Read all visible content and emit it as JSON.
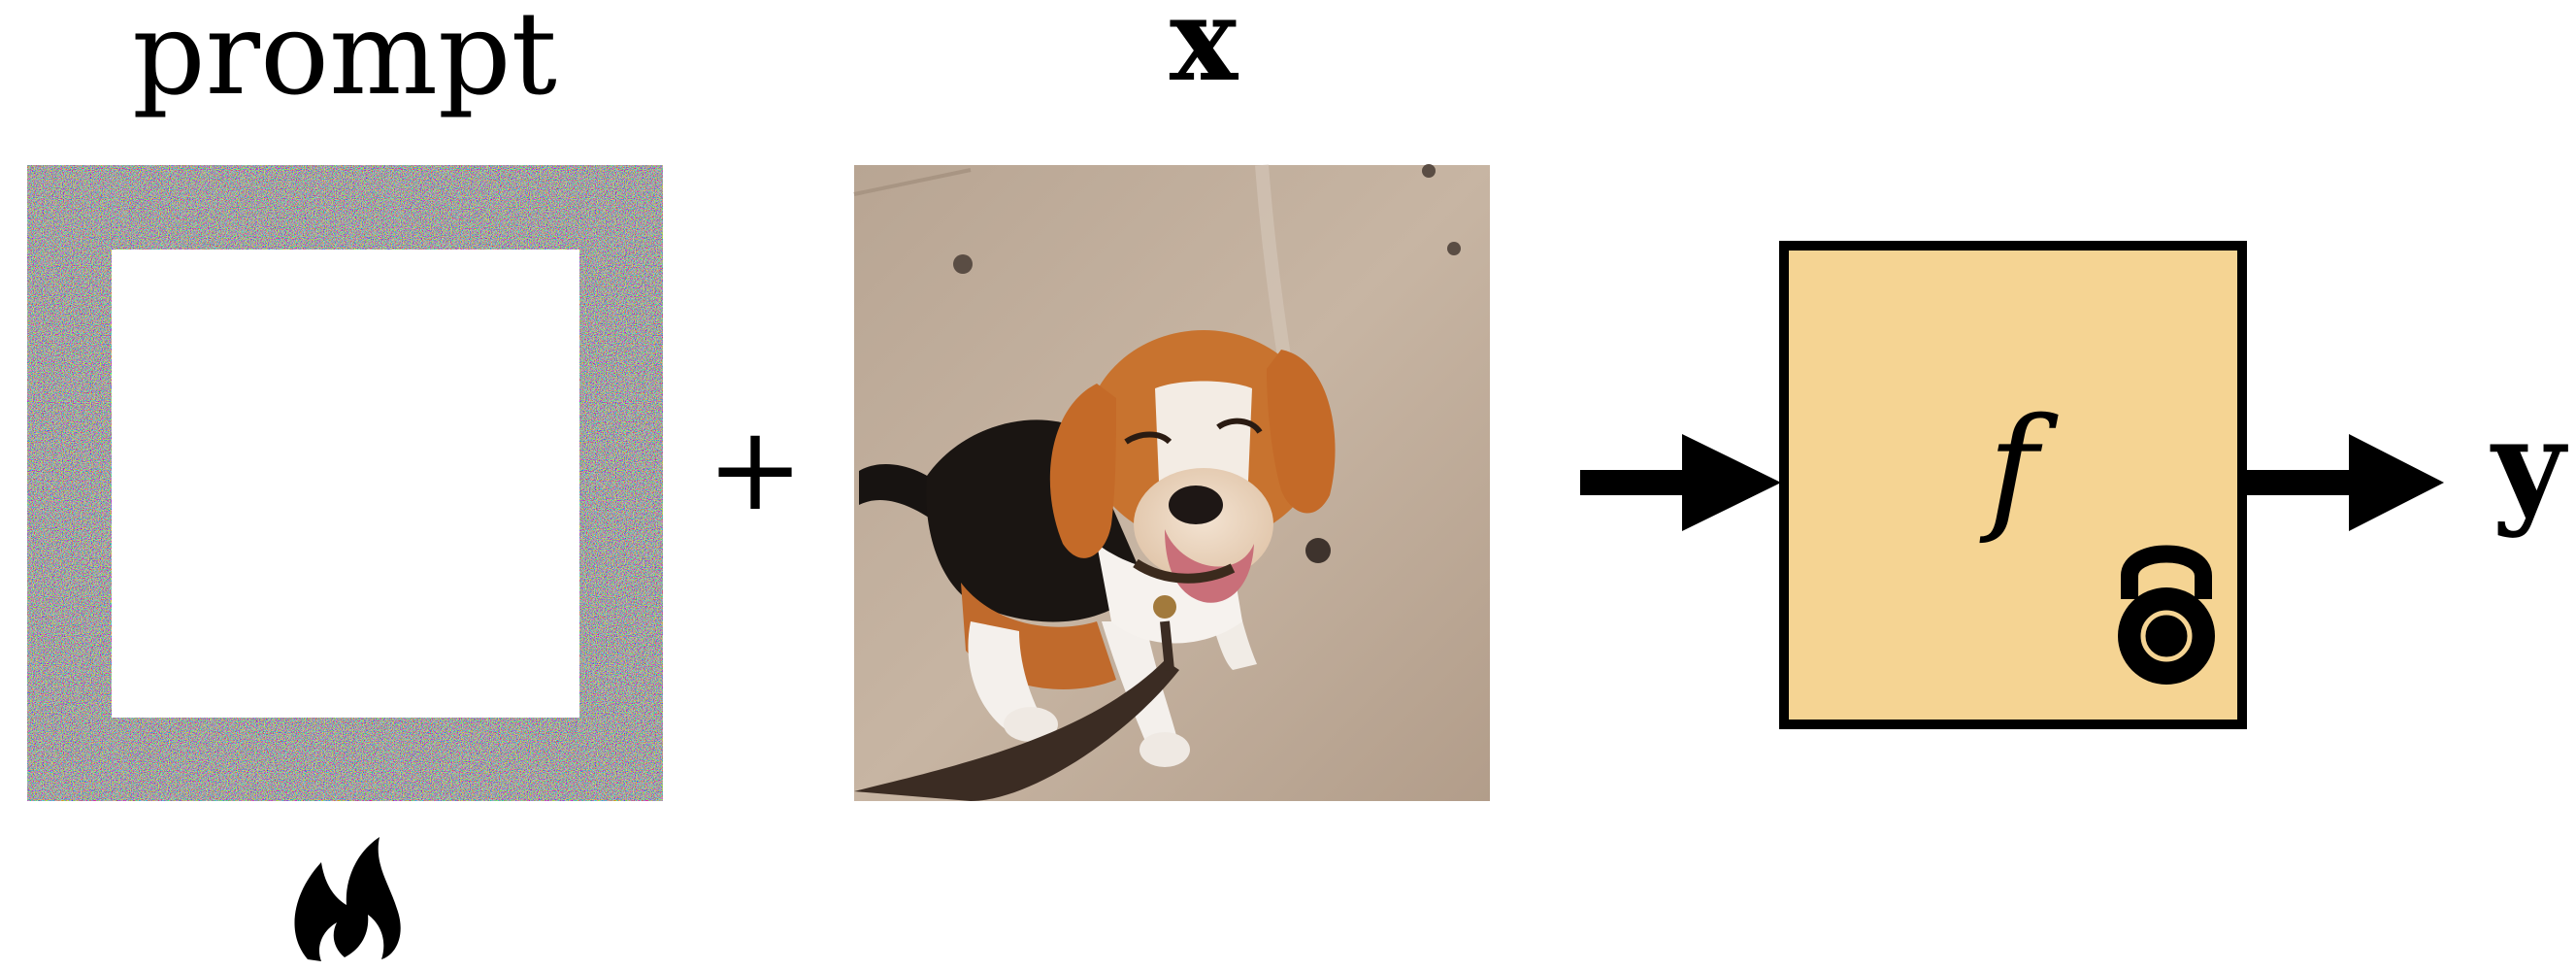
{
  "labels": {
    "prompt": "prompt",
    "x": "x",
    "plus": "+",
    "f": "f",
    "y": "y"
  },
  "icons": {
    "trainable": "flame-icon",
    "frozen": "lock-icon"
  },
  "colors": {
    "model_box_fill": "#f5d493",
    "stroke": "#000000",
    "lock_ring": "#f5d493"
  }
}
